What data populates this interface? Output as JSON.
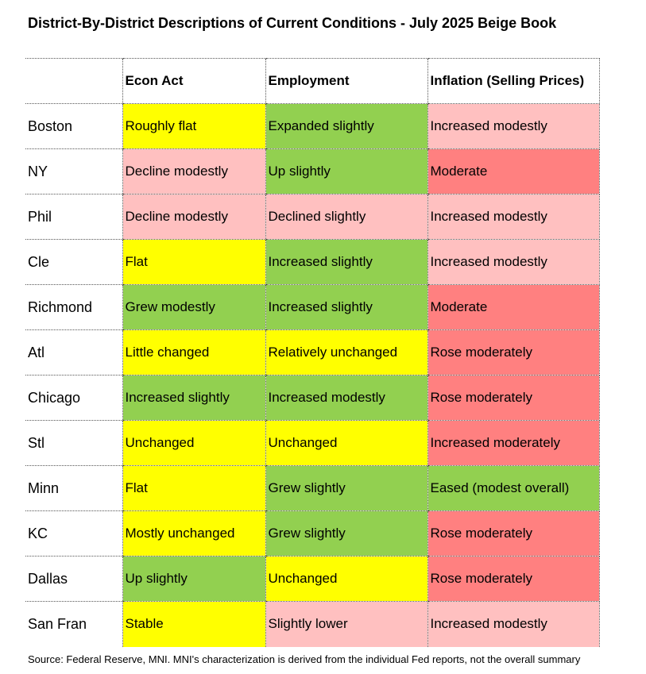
{
  "title": "District-By-District Descriptions of Current Conditions - July 2025 Beige Book",
  "colors": {
    "yellow": "#ffff00",
    "green": "#92d050",
    "light_red": "#ffc0c0",
    "red": "#ff8080"
  },
  "headers": [
    "",
    "Econ Act",
    "Employment",
    "Inflation (Selling Prices)"
  ],
  "rows": [
    {
      "district": "Boston",
      "econ": "Roughly flat",
      "econ_color": "yellow",
      "emp": "Expanded slightly",
      "emp_color": "green",
      "infl": "Increased modestly",
      "infl_color": "light_red"
    },
    {
      "district": "NY",
      "econ": "Decline modestly",
      "econ_color": "light_red",
      "emp": "Up slightly",
      "emp_color": "green",
      "infl": "Moderate",
      "infl_color": "red"
    },
    {
      "district": "Phil",
      "econ": "Decline modestly",
      "econ_color": "light_red",
      "emp": "Declined slightly",
      "emp_color": "light_red",
      "infl": "Increased modestly",
      "infl_color": "light_red"
    },
    {
      "district": "Cle",
      "econ": "Flat",
      "econ_color": "yellow",
      "emp": "Increased slightly",
      "emp_color": "green",
      "infl": "Increased modestly",
      "infl_color": "light_red"
    },
    {
      "district": "Richmond",
      "econ": "Grew modestly",
      "econ_color": "green",
      "emp": "Increased slightly",
      "emp_color": "green",
      "infl": "Moderate",
      "infl_color": "red"
    },
    {
      "district": "Atl",
      "econ": "Little changed",
      "econ_color": "yellow",
      "emp": "Relatively unchanged",
      "emp_color": "yellow",
      "infl": "Rose moderately",
      "infl_color": "red"
    },
    {
      "district": "Chicago",
      "econ": "Increased slightly",
      "econ_color": "green",
      "emp": "Increased modestly",
      "emp_color": "green",
      "infl": "Rose moderately",
      "infl_color": "red"
    },
    {
      "district": "Stl",
      "econ": "Unchanged",
      "econ_color": "yellow",
      "emp": "Unchanged",
      "emp_color": "yellow",
      "infl": "Increased moderately",
      "infl_color": "red"
    },
    {
      "district": "Minn",
      "econ": "Flat",
      "econ_color": "yellow",
      "emp": "Grew slightly",
      "emp_color": "green",
      "infl": "Eased (modest overall)",
      "infl_color": "green"
    },
    {
      "district": "KC",
      "econ": "Mostly unchanged",
      "econ_color": "yellow",
      "emp": "Grew slightly",
      "emp_color": "green",
      "infl": "Rose moderately",
      "infl_color": "red"
    },
    {
      "district": "Dallas",
      "econ": "Up slightly",
      "econ_color": "green",
      "emp": "Unchanged",
      "emp_color": "yellow",
      "infl": "Rose moderately",
      "infl_color": "red"
    },
    {
      "district": "San Fran",
      "econ": "Stable",
      "econ_color": "yellow",
      "emp": "Slightly lower",
      "emp_color": "light_red",
      "infl": "Increased modestly",
      "infl_color": "light_red"
    }
  ],
  "source": "Source: Federal Reserve, MNI. MNI's characterization is derived from the individual Fed reports, not the overall summary"
}
